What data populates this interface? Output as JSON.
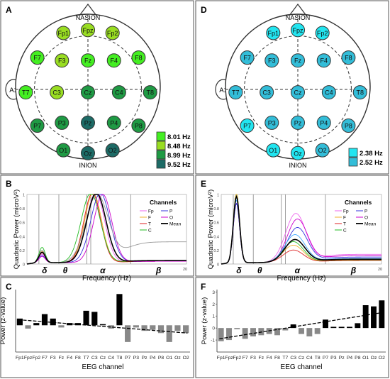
{
  "panels": {
    "A": "A",
    "B": "B",
    "C": "C",
    "D": "D",
    "E": "E",
    "F": "F"
  },
  "colors": {
    "panel_border": "#555555",
    "head_fill": "#ffffff",
    "electrode_stroke": "#333333",
    "bar_pos": "#000000",
    "bar_neg": "#888888"
  },
  "head_labels": {
    "top": "NASION",
    "bottom": "INION",
    "ear": "A1"
  },
  "electrodes": [
    "Fp1",
    "Fpz",
    "Fp2",
    "F7",
    "F3",
    "Fz",
    "F4",
    "F8",
    "T7",
    "C3",
    "Cz",
    "C4",
    "T8",
    "P7",
    "P3",
    "Pz",
    "P4",
    "P8",
    "O1",
    "Oz",
    "O2"
  ],
  "topo_A": {
    "legend": [
      {
        "label": "8.01 Hz",
        "color": "#44ee22"
      },
      {
        "label": "8.48 Hz",
        "color": "#99dd22"
      },
      {
        "label": "8.99 Hz",
        "color": "#1f9a44"
      },
      {
        "label": "9.52 Hz",
        "color": "#1d6b66"
      }
    ],
    "electrode_level": {
      "Fp1": 1,
      "Fpz": 1,
      "Fp2": 1,
      "F7": 0,
      "F3": 1,
      "Fz": 0,
      "F4": 0,
      "F8": 0,
      "T7": 0,
      "C3": 1,
      "Cz": 2,
      "C4": 2,
      "T8": 2,
      "P7": 2,
      "P3": 2,
      "Pz": 3,
      "P4": 2,
      "P8": 2,
      "O1": 2,
      "Oz": 3,
      "O2": 3
    }
  },
  "topo_D": {
    "legend": [
      {
        "label": "2.38 Hz",
        "color": "#22e5f0"
      },
      {
        "label": "2.52 Hz",
        "color": "#33bdd8"
      }
    ],
    "electrode_level": {
      "Fp1": 0,
      "Fpz": 0,
      "Fp2": 0,
      "F7": 1,
      "F3": 1,
      "Fz": 1,
      "F4": 1,
      "F8": 1,
      "T7": 1,
      "C3": 1,
      "Cz": 1,
      "C4": 1,
      "T8": 1,
      "P7": 0,
      "P3": 1,
      "Pz": 1,
      "P4": 1,
      "P8": 1,
      "O1": 0,
      "Oz": 0,
      "O2": 1
    }
  },
  "chart_data": [
    {
      "panel": "B",
      "type": "line",
      "xlabel": "Frequency (Hz)",
      "ylabel": "Quadratic Power (microV²)",
      "xlim": [
        0,
        20
      ],
      "ylim": [
        0,
        1
      ],
      "x_ticks": [
        "20"
      ],
      "y_ticks": [
        "0",
        "0.2",
        "0.4",
        "0.6",
        "0.8",
        "1"
      ],
      "band_labels": [
        "δ",
        "θ",
        "α",
        "β"
      ],
      "band_label_x": [
        2.2,
        4.8,
        9.5,
        16.5
      ],
      "band_edges": [
        1.5,
        4,
        7.5,
        8,
        13
      ],
      "legend_title": "Channels",
      "legend": [
        {
          "name": "Fp",
          "color": "#ee66ee"
        },
        {
          "name": "P",
          "color": "#3333dd"
        },
        {
          "name": "F",
          "color": "#f0b030"
        },
        {
          "name": "O",
          "color": "#cc00cc"
        },
        {
          "name": "T",
          "color": "#dd2222"
        },
        {
          "name": "Mean",
          "color": "#000000"
        },
        {
          "name": "C",
          "color": "#22bb22"
        }
      ],
      "curves": [
        {
          "color": "#ee66ee",
          "peak_x": 8.6,
          "peak_y": 1.0,
          "width": 1.6,
          "delta": 0.12,
          "tail": 0.02
        },
        {
          "color": "#f0b030",
          "peak_x": 8.3,
          "peak_y": 1.0,
          "width": 1.5,
          "delta": 0.16,
          "tail": 0.02
        },
        {
          "color": "#dd2222",
          "peak_x": 8.2,
          "peak_y": 1.0,
          "width": 1.5,
          "delta": 0.14,
          "tail": 0.02
        },
        {
          "color": "#22bb22",
          "peak_x": 8.0,
          "peak_y": 1.0,
          "width": 1.7,
          "delta": 0.22,
          "tail": 0.03
        },
        {
          "color": "#3333dd",
          "peak_x": 9.2,
          "peak_y": 1.0,
          "width": 1.7,
          "delta": 0.1,
          "tail": 0.02
        },
        {
          "color": "#cc00cc",
          "peak_x": 9.5,
          "peak_y": 0.98,
          "width": 1.6,
          "delta": 0.09,
          "tail": 0.02
        },
        {
          "color": "#999999",
          "peak_x": 8.8,
          "peak_y": 0.97,
          "width": 2.0,
          "delta": 0.18,
          "tail": 0.3
        },
        {
          "color": "#000000",
          "peak_x": 8.7,
          "peak_y": 1.0,
          "width": 1.7,
          "delta": 0.15,
          "tail": 0.03
        }
      ]
    },
    {
      "panel": "E",
      "type": "line",
      "xlabel": "Frequency (Hz)",
      "ylabel": "Quadratic Power (microV²)",
      "xlim": [
        0,
        20
      ],
      "ylim": [
        0,
        1
      ],
      "x_ticks": [
        "20"
      ],
      "y_ticks": [
        "0",
        "0.2",
        "0.4",
        "0.6",
        "0.8",
        "1"
      ],
      "band_labels": [
        "δ",
        "θ",
        "α",
        "β"
      ],
      "band_label_x": [
        2.2,
        4.8,
        9.5,
        16.5
      ],
      "band_edges": [
        1.5,
        4,
        7.5,
        8,
        13
      ],
      "legend_title": "Channels",
      "legend": [
        {
          "name": "Fp",
          "color": "#ee66ee"
        },
        {
          "name": "P",
          "color": "#3333dd"
        },
        {
          "name": "F",
          "color": "#f0b030"
        },
        {
          "name": "O",
          "color": "#cc00cc"
        },
        {
          "name": "T",
          "color": "#dd2222"
        },
        {
          "name": "Mean",
          "color": "#000000"
        },
        {
          "name": "C",
          "color": "#22bb22"
        }
      ],
      "curves": [
        {
          "color": "#ee66ee",
          "peak_x": 9.3,
          "peak_y": 0.7,
          "width": 1.8,
          "delta": 0.95,
          "tail": 0.12
        },
        {
          "color": "#cc00cc",
          "peak_x": 9.5,
          "peak_y": 0.62,
          "width": 1.8,
          "delta": 0.85,
          "tail": 0.1
        },
        {
          "color": "#3333dd",
          "peak_x": 9.5,
          "peak_y": 0.5,
          "width": 1.8,
          "delta": 0.85,
          "tail": 0.08
        },
        {
          "color": "#22bb22",
          "peak_x": 9.0,
          "peak_y": 0.3,
          "width": 1.8,
          "delta": 1.0,
          "tail": 0.04
        },
        {
          "color": "#f0b030",
          "peak_x": 9.0,
          "peak_y": 0.25,
          "width": 1.8,
          "delta": 1.0,
          "tail": 0.03
        },
        {
          "color": "#dd2222",
          "peak_x": 9.0,
          "peak_y": 0.18,
          "width": 1.8,
          "delta": 0.95,
          "tail": 0.03
        },
        {
          "color": "#44aaff",
          "peak_x": 9.2,
          "peak_y": 0.4,
          "width": 1.8,
          "delta": 0.9,
          "tail": 0.06
        },
        {
          "color": "#000000",
          "peak_x": 9.2,
          "peak_y": 0.33,
          "width": 1.8,
          "delta": 0.95,
          "tail": 0.05
        }
      ]
    },
    {
      "panel": "C",
      "type": "bar",
      "xlabel": "EEG channel",
      "ylabel": "Power (z-value)",
      "categories": [
        "Fp1",
        "Fpz",
        "Fp2",
        "F7",
        "F3",
        "Fz",
        "F4",
        "F8",
        "T7",
        "C3",
        "Cz",
        "C4",
        "T8",
        "P7",
        "P3",
        "Pz",
        "P4",
        "P8",
        "O1",
        "Oz",
        "O2"
      ],
      "values": [
        0.6,
        -0.3,
        0.2,
        1.0,
        0.6,
        -0.2,
        0.2,
        0.2,
        1.3,
        1.2,
        0.1,
        -0.3,
        2.8,
        -1.5,
        -0.2,
        -0.5,
        -0.4,
        -0.7,
        -1.5,
        -0.5,
        -0.7
      ],
      "trend": [
        0.5,
        -0.7
      ],
      "ylim": [
        -2.4,
        3.2
      ]
    },
    {
      "panel": "F",
      "type": "bar",
      "xlabel": "EEG channel",
      "ylabel": "Power (z-value)",
      "categories": [
        "Fp1",
        "Fpz",
        "Fp2",
        "F7",
        "F3",
        "Fz",
        "F4",
        "F8",
        "T7",
        "C3",
        "Cz",
        "C4",
        "T8",
        "P7",
        "P3",
        "Pz",
        "P4",
        "P8",
        "O1",
        "Oz",
        "O2"
      ],
      "values": [
        -1.1,
        -1.0,
        -0.1,
        -0.9,
        -0.7,
        -0.6,
        -0.5,
        -0.6,
        -0.2,
        0.3,
        -0.5,
        -0.7,
        -0.5,
        0.7,
        0.1,
        0.1,
        0.1,
        0.4,
        1.9,
        1.8,
        2.3
      ],
      "trend": [
        -0.9,
        1.3
      ],
      "y_ticks": [
        "-1",
        "0",
        "1",
        "2",
        "3"
      ],
      "ylim": [
        -2.0,
        3.2
      ]
    }
  ]
}
